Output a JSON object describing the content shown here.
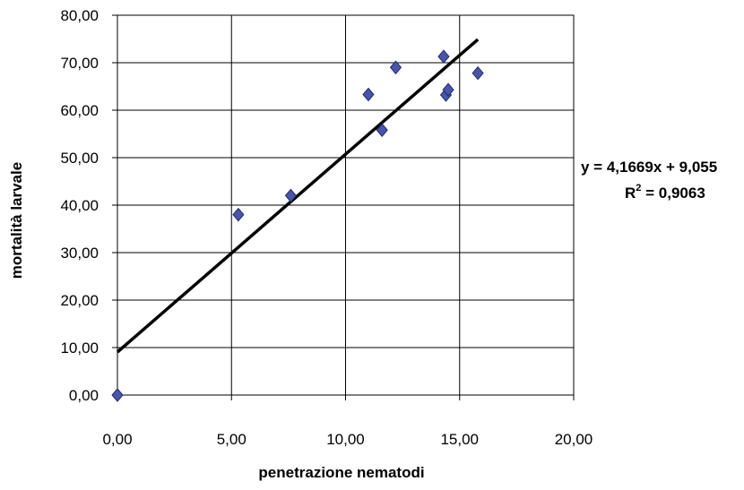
{
  "chart_data": {
    "type": "scatter",
    "title": "",
    "xlabel": "penetrazione nematodi",
    "ylabel": "mortalità larvale",
    "xlim": [
      0,
      20
    ],
    "ylim": [
      0,
      80
    ],
    "x_ticks": [
      "0,00",
      "5,00",
      "10,00",
      "15,00",
      "20,00"
    ],
    "y_ticks": [
      "0,00",
      "10,00",
      "20,00",
      "30,00",
      "40,00",
      "50,00",
      "60,00",
      "70,00",
      "80,00"
    ],
    "grid": true,
    "marker": "diamond",
    "marker_color": "#4a55a8",
    "series": [
      {
        "points": [
          {
            "x": 0.0,
            "y": 0.0
          },
          {
            "x": 5.3,
            "y": 38.0
          },
          {
            "x": 7.6,
            "y": 42.0
          },
          {
            "x": 11.0,
            "y": 63.3
          },
          {
            "x": 11.6,
            "y": 55.8
          },
          {
            "x": 12.2,
            "y": 69.0
          },
          {
            "x": 14.3,
            "y": 71.3
          },
          {
            "x": 14.4,
            "y": 63.2
          },
          {
            "x": 14.5,
            "y": 64.3
          },
          {
            "x": 15.8,
            "y": 67.8
          }
        ]
      }
    ],
    "trendline": {
      "slope": 4.1669,
      "intercept": 9.055,
      "x_range": [
        0,
        15.8
      ],
      "equation_label": "y = 4,1669x + 9,055",
      "r2_prefix": "R",
      "r2_sup": "2",
      "r2_value": " = 0,9063"
    }
  }
}
